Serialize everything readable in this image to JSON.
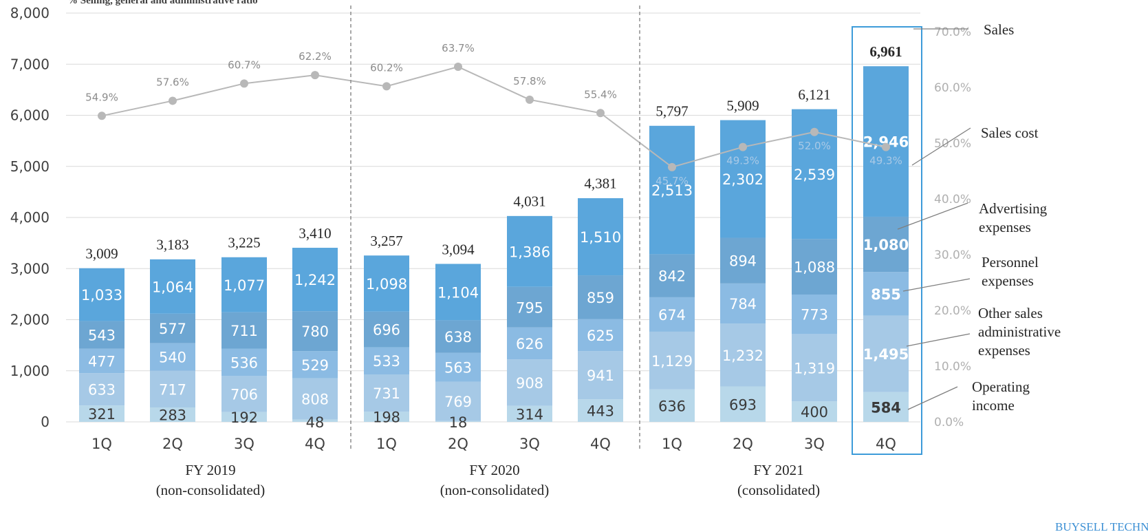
{
  "colors": {
    "sales_cost": "#5aa6dc",
    "advertising": "#6da6d2",
    "personnel": "#8bbbe3",
    "other_admin": "#a6c9e6",
    "operating_income": "#b8d8ea",
    "ratio_line": "#b8b8b8",
    "highlight_box": "#3d9bd9",
    "gridline": "#d9d9d9",
    "divider": "#8c8c8c"
  },
  "legend_top_label": "%   Selling, general and administrative ratio",
  "brand_text": "BUYSELL TECHNOLOGIES",
  "chart_data": {
    "type": "bar",
    "stacked": true,
    "categories": [
      "1Q",
      "2Q",
      "3Q",
      "4Q",
      "1Q",
      "2Q",
      "3Q",
      "4Q",
      "1Q",
      "2Q",
      "3Q",
      "4Q"
    ],
    "groups": [
      {
        "line1": "FY 2019",
        "line2": "(non-consolidated)"
      },
      {
        "line1": "FY 2020",
        "line2": "(non-consolidated)"
      },
      {
        "line1": "FY 2021",
        "line2": "(consolidated)"
      }
    ],
    "y_left": {
      "min": 0,
      "max": 8000,
      "ticks": [
        "0",
        "1,000",
        "2,000",
        "3,000",
        "4,000",
        "5,000",
        "6,000",
        "7,000",
        "8,000"
      ]
    },
    "y_right": {
      "min": 0,
      "max": 70,
      "ticks": [
        "0.0%",
        "10.0%",
        "20.0%",
        "30.0%",
        "40.0%",
        "50.0%",
        "60.0%",
        "70.0%"
      ]
    },
    "series": [
      {
        "name": "Operating income",
        "values": [
          321,
          283,
          192,
          48,
          198,
          18,
          314,
          443,
          636,
          693,
          400,
          584
        ],
        "labels": [
          "321",
          "283",
          "192",
          "48",
          "198",
          "18",
          "314",
          "443",
          "636",
          "693",
          "400",
          "584"
        ]
      },
      {
        "name": "Other sales administrative expenses",
        "values": [
          633,
          717,
          706,
          808,
          731,
          769,
          908,
          941,
          1129,
          1232,
          1319,
          1495
        ],
        "labels": [
          "633",
          "717",
          "706",
          "808",
          "731",
          "769",
          "908",
          "941",
          "1,129",
          "1,232",
          "1,319",
          "1,495"
        ]
      },
      {
        "name": "Personnel expenses",
        "values": [
          477,
          540,
          536,
          529,
          533,
          563,
          626,
          625,
          674,
          784,
          773,
          855
        ],
        "labels": [
          "477",
          "540",
          "536",
          "529",
          "533",
          "563",
          "626",
          "625",
          "674",
          "784",
          "773",
          "855"
        ]
      },
      {
        "name": "Advertising expenses",
        "values": [
          543,
          577,
          711,
          780,
          696,
          638,
          795,
          859,
          842,
          894,
          1088,
          1080
        ],
        "labels": [
          "543",
          "577",
          "711",
          "780",
          "696",
          "638",
          "795",
          "859",
          "842",
          "894",
          "1,088",
          "1,080"
        ]
      },
      {
        "name": "Sales cost",
        "values": [
          1033,
          1064,
          1077,
          1242,
          1098,
          1104,
          1386,
          1510,
          2513,
          2302,
          2539,
          2946
        ],
        "labels": [
          "1,033",
          "1,064",
          "1,077",
          "1,242",
          "1,098",
          "1,104",
          "1,386",
          "1,510",
          "2,513",
          "2,302",
          "2,539",
          "2,946"
        ]
      }
    ],
    "totals": {
      "name": "Sales",
      "values": [
        3009,
        3183,
        3225,
        3410,
        3257,
        3094,
        4031,
        4381,
        5797,
        5909,
        6121,
        6961
      ],
      "labels": [
        "3,009",
        "3,183",
        "3,225",
        "3,410",
        "3,257",
        "3,094",
        "4,031",
        "4,381",
        "5,797",
        "5,909",
        "6,121",
        "6,961"
      ]
    },
    "ratio": {
      "name": "Selling, general and administrative ratio",
      "values": [
        54.9,
        57.6,
        60.7,
        62.2,
        60.2,
        63.7,
        57.8,
        55.4,
        45.7,
        49.3,
        52.0,
        49.3
      ],
      "labels": [
        "54.9%",
        "57.6%",
        "60.7%",
        "62.2%",
        "60.2%",
        "63.7%",
        "57.8%",
        "55.4%",
        "45.7%",
        "49.3%",
        "52.0%",
        "49.3%"
      ]
    },
    "annotations": [
      {
        "key": "sales",
        "lines": [
          "Sales"
        ]
      },
      {
        "key": "sales_cost",
        "lines": [
          "Sales cost"
        ]
      },
      {
        "key": "advertising",
        "lines": [
          "Advertising",
          "expenses"
        ]
      },
      {
        "key": "personnel",
        "lines": [
          "Personnel",
          "expenses"
        ]
      },
      {
        "key": "other_admin",
        "lines": [
          "Other sales",
          "administrative",
          "expenses"
        ]
      },
      {
        "key": "operating_income",
        "lines": [
          "Operating",
          "income"
        ]
      }
    ]
  }
}
